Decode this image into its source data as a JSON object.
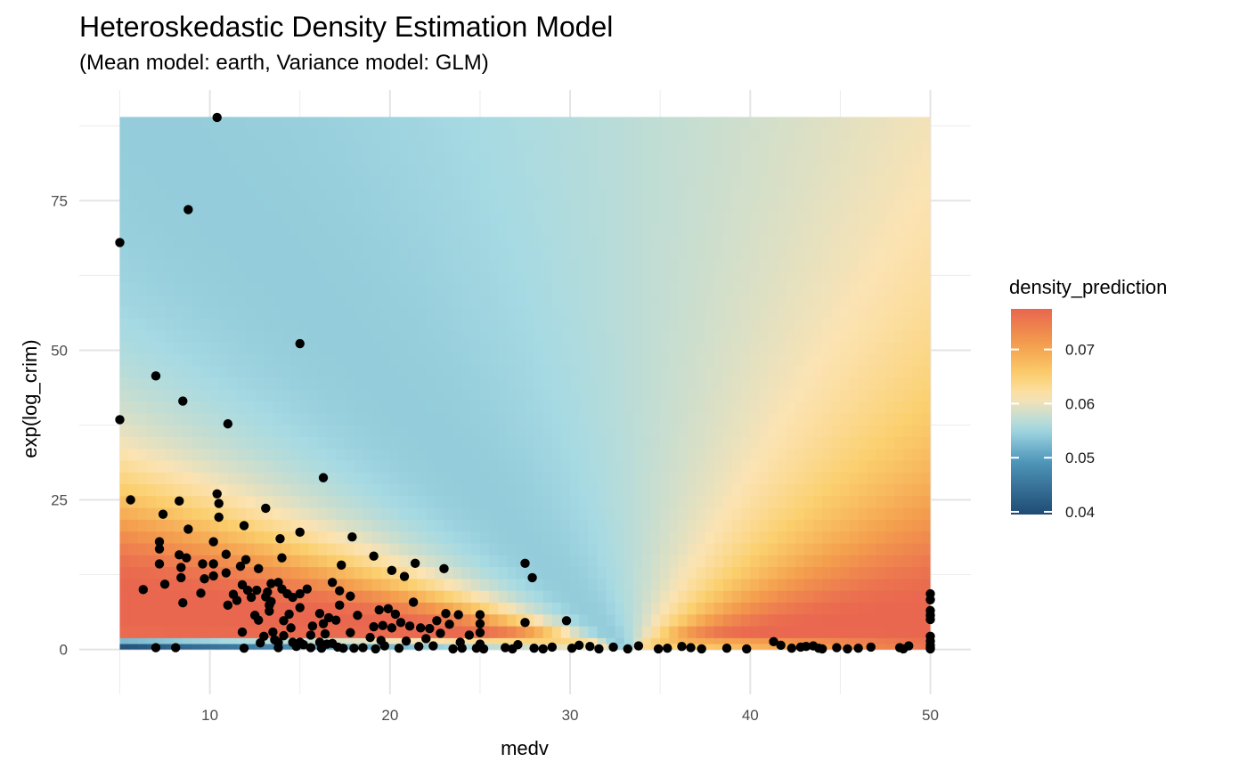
{
  "chart_data": {
    "type": "heatmap",
    "title": "Heteroskedastic Density Estimation Model",
    "subtitle": "(Mean model: earth, Variance model: GLM)",
    "xlabel": "medv",
    "ylabel": "exp(log_crim)",
    "xlim": [
      2.75,
      52.25
    ],
    "ylim": [
      -7.5,
      93.5
    ],
    "x_ticks": [
      10,
      20,
      30,
      40,
      50
    ],
    "y_ticks": [
      0,
      25,
      50,
      75
    ],
    "grid": true,
    "heatmap_extent": {
      "x": [
        5,
        50
      ],
      "y": [
        0,
        89
      ]
    },
    "legend": {
      "title": "density_prediction",
      "position": "right",
      "range": [
        0.0395,
        0.0775
      ],
      "breaks": [
        0.04,
        0.05,
        0.06,
        0.07
      ],
      "labels": [
        "0.04",
        "0.05",
        "0.06",
        "0.07"
      ],
      "colors": [
        "#1f4a73",
        "#4f97bb",
        "#a6dae3",
        "#fbe3b3",
        "#fbcf6d",
        "#f4a04e",
        "#e9664f"
      ]
    },
    "points": [
      [
        5.0,
        68.0
      ],
      [
        5.0,
        38.4
      ],
      [
        5.6,
        25.0
      ],
      [
        6.3,
        10.0
      ],
      [
        7.0,
        45.7
      ],
      [
        7.0,
        0.3
      ],
      [
        7.2,
        18.0
      ],
      [
        7.2,
        16.8
      ],
      [
        7.2,
        14.3
      ],
      [
        7.4,
        22.6
      ],
      [
        7.5,
        10.9
      ],
      [
        8.1,
        0.3
      ],
      [
        8.3,
        24.8
      ],
      [
        8.3,
        15.8
      ],
      [
        8.4,
        13.7
      ],
      [
        8.4,
        12.0
      ],
      [
        8.5,
        41.5
      ],
      [
        8.5,
        7.8
      ],
      [
        8.7,
        15.3
      ],
      [
        8.8,
        73.5
      ],
      [
        8.8,
        20.1
      ],
      [
        9.5,
        9.4
      ],
      [
        9.6,
        14.3
      ],
      [
        9.7,
        11.8
      ],
      [
        10.2,
        18.0
      ],
      [
        10.2,
        14.3
      ],
      [
        10.2,
        12.3
      ],
      [
        10.4,
        88.9
      ],
      [
        10.4,
        26.0
      ],
      [
        10.5,
        24.4
      ],
      [
        10.5,
        22.1
      ],
      [
        10.9,
        15.9
      ],
      [
        10.9,
        12.8
      ],
      [
        11.0,
        37.7
      ],
      [
        11.0,
        7.4
      ],
      [
        11.3,
        9.2
      ],
      [
        11.5,
        8.2
      ],
      [
        11.7,
        13.9
      ],
      [
        11.8,
        10.8
      ],
      [
        11.8,
        2.9
      ],
      [
        11.9,
        20.7
      ],
      [
        11.9,
        0.2
      ],
      [
        12.0,
        15.0
      ],
      [
        12.1,
        9.9
      ],
      [
        12.3,
        8.7
      ],
      [
        12.5,
        5.7
      ],
      [
        12.6,
        9.9
      ],
      [
        12.7,
        13.5
      ],
      [
        12.7,
        4.9
      ],
      [
        12.8,
        1.1
      ],
      [
        13.0,
        2.2
      ],
      [
        13.1,
        23.6
      ],
      [
        13.1,
        8.8
      ],
      [
        13.2,
        9.6
      ],
      [
        13.3,
        7.4
      ],
      [
        13.3,
        6.4
      ],
      [
        13.4,
        11.0
      ],
      [
        13.4,
        8.0
      ],
      [
        13.5,
        2.9
      ],
      [
        13.6,
        1.6
      ],
      [
        13.8,
        11.2
      ],
      [
        13.8,
        1.2
      ],
      [
        13.8,
        0.3
      ],
      [
        13.9,
        18.5
      ],
      [
        14.0,
        15.3
      ],
      [
        14.0,
        10.1
      ],
      [
        14.1,
        4.8
      ],
      [
        14.1,
        2.3
      ],
      [
        14.3,
        9.3
      ],
      [
        14.4,
        5.9
      ],
      [
        14.5,
        3.6
      ],
      [
        14.6,
        8.7
      ],
      [
        14.6,
        1.2
      ],
      [
        14.8,
        0.5
      ],
      [
        15.0,
        51.1
      ],
      [
        15.0,
        19.6
      ],
      [
        15.0,
        9.3
      ],
      [
        15.0,
        7.0
      ],
      [
        15.0,
        1.2
      ],
      [
        15.2,
        0.8
      ],
      [
        15.4,
        10.1
      ],
      [
        15.6,
        2.4
      ],
      [
        15.6,
        0.3
      ],
      [
        15.7,
        3.9
      ],
      [
        16.1,
        6.0
      ],
      [
        16.1,
        1.2
      ],
      [
        16.2,
        0.2
      ],
      [
        16.3,
        28.7
      ],
      [
        16.3,
        4.3
      ],
      [
        16.4,
        2.6
      ],
      [
        16.5,
        0.9
      ],
      [
        16.6,
        5.3
      ],
      [
        16.8,
        11.2
      ],
      [
        16.8,
        1.0
      ],
      [
        17.0,
        4.9
      ],
      [
        17.1,
        0.4
      ],
      [
        17.2,
        9.8
      ],
      [
        17.2,
        7.4
      ],
      [
        17.3,
        14.1
      ],
      [
        17.4,
        0.2
      ],
      [
        17.8,
        8.9
      ],
      [
        17.8,
        2.8
      ],
      [
        17.9,
        18.8
      ],
      [
        18.0,
        0.2
      ],
      [
        18.2,
        5.7
      ],
      [
        18.5,
        0.3
      ],
      [
        18.9,
        2.0
      ],
      [
        19.1,
        15.6
      ],
      [
        19.1,
        3.8
      ],
      [
        19.2,
        0.1
      ],
      [
        19.4,
        6.6
      ],
      [
        19.5,
        1.5
      ],
      [
        19.6,
        4.0
      ],
      [
        19.7,
        0.6
      ],
      [
        19.9,
        6.8
      ],
      [
        20.1,
        13.2
      ],
      [
        20.1,
        3.6
      ],
      [
        20.3,
        5.9
      ],
      [
        20.5,
        0.2
      ],
      [
        20.6,
        4.5
      ],
      [
        20.8,
        12.2
      ],
      [
        20.9,
        1.4
      ],
      [
        21.1,
        3.9
      ],
      [
        21.3,
        7.9
      ],
      [
        21.4,
        14.4
      ],
      [
        21.6,
        0.5
      ],
      [
        21.7,
        3.6
      ],
      [
        22.0,
        1.8
      ],
      [
        22.2,
        3.5
      ],
      [
        22.4,
        0.6
      ],
      [
        22.6,
        4.8
      ],
      [
        22.8,
        2.7
      ],
      [
        23.0,
        13.5
      ],
      [
        23.1,
        6.0
      ],
      [
        23.3,
        4.2
      ],
      [
        23.5,
        0.1
      ],
      [
        23.8,
        5.8
      ],
      [
        23.9,
        1.2
      ],
      [
        24.0,
        0.2
      ],
      [
        24.4,
        2.4
      ],
      [
        24.8,
        0.2
      ],
      [
        25.0,
        5.8
      ],
      [
        25.0,
        4.3
      ],
      [
        25.0,
        2.8
      ],
      [
        25.0,
        0.9
      ],
      [
        25.2,
        0.1
      ],
      [
        26.4,
        0.3
      ],
      [
        26.8,
        0.1
      ],
      [
        27.1,
        0.8
      ],
      [
        27.5,
        14.4
      ],
      [
        27.5,
        4.5
      ],
      [
        27.9,
        12.0
      ],
      [
        28.0,
        0.2
      ],
      [
        28.5,
        0.1
      ],
      [
        29.0,
        0.4
      ],
      [
        29.8,
        4.8
      ],
      [
        30.1,
        0.2
      ],
      [
        30.5,
        0.7
      ],
      [
        31.1,
        0.5
      ],
      [
        31.6,
        0.1
      ],
      [
        32.4,
        0.4
      ],
      [
        33.2,
        0.1
      ],
      [
        33.8,
        0.6
      ],
      [
        34.9,
        0.1
      ],
      [
        35.4,
        0.2
      ],
      [
        36.2,
        0.5
      ],
      [
        36.7,
        0.3
      ],
      [
        37.3,
        0.1
      ],
      [
        38.7,
        0.2
      ],
      [
        39.8,
        0.1
      ],
      [
        41.3,
        1.3
      ],
      [
        41.7,
        0.7
      ],
      [
        42.3,
        0.2
      ],
      [
        42.8,
        0.4
      ],
      [
        43.1,
        0.5
      ],
      [
        43.5,
        0.6
      ],
      [
        43.8,
        0.2
      ],
      [
        44.0,
        0.1
      ],
      [
        44.8,
        0.3
      ],
      [
        45.4,
        0.1
      ],
      [
        46.0,
        0.2
      ],
      [
        46.7,
        0.4
      ],
      [
        48.3,
        0.3
      ],
      [
        48.5,
        0.1
      ],
      [
        48.8,
        0.6
      ],
      [
        50.0,
        9.3
      ],
      [
        50.0,
        8.3
      ],
      [
        50.0,
        6.5
      ],
      [
        50.0,
        5.7
      ],
      [
        50.0,
        5.0
      ],
      [
        50.0,
        2.2
      ],
      [
        50.0,
        1.4
      ],
      [
        50.0,
        0.7
      ],
      [
        50.0,
        0.3
      ],
      [
        50.0,
        0.1
      ]
    ]
  }
}
